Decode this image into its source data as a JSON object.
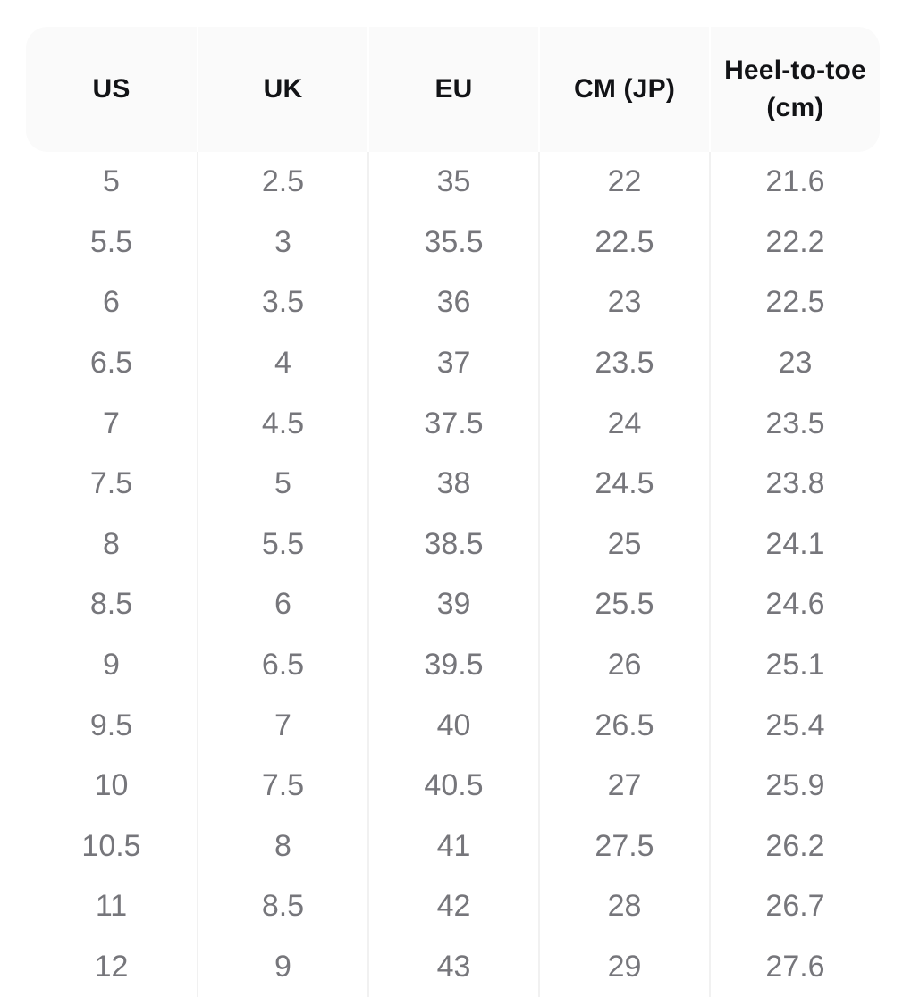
{
  "table": {
    "name": "shoe-size-conversion-chart",
    "columns": [
      {
        "key": "us",
        "label": "US"
      },
      {
        "key": "uk",
        "label": "UK"
      },
      {
        "key": "eu",
        "label": "EU"
      },
      {
        "key": "cm_jp",
        "label": "CM (JP)"
      },
      {
        "key": "heel_to_toe",
        "label": "Heel-to-toe (cm)"
      }
    ],
    "rows": [
      [
        "5",
        "2.5",
        "35",
        "22",
        "21.6"
      ],
      [
        "5.5",
        "3",
        "35.5",
        "22.5",
        "22.2"
      ],
      [
        "6",
        "3.5",
        "36",
        "23",
        "22.5"
      ],
      [
        "6.5",
        "4",
        "37",
        "23.5",
        "23"
      ],
      [
        "7",
        "4.5",
        "37.5",
        "24",
        "23.5"
      ],
      [
        "7.5",
        "5",
        "38",
        "24.5",
        "23.8"
      ],
      [
        "8",
        "5.5",
        "38.5",
        "25",
        "24.1"
      ],
      [
        "8.5",
        "6",
        "39",
        "25.5",
        "24.6"
      ],
      [
        "9",
        "6.5",
        "39.5",
        "26",
        "25.1"
      ],
      [
        "9.5",
        "7",
        "40",
        "26.5",
        "25.4"
      ],
      [
        "10",
        "7.5",
        "40.5",
        "27",
        "25.9"
      ],
      [
        "10.5",
        "8",
        "41",
        "27.5",
        "26.2"
      ],
      [
        "11",
        "8.5",
        "42",
        "28",
        "26.7"
      ],
      [
        "12",
        "9",
        "43",
        "29",
        "27.6"
      ]
    ],
    "colors": {
      "header_bg": "#fafafa",
      "header_text": "#121316",
      "body_text": "#76767b",
      "column_separator_body": "#f1f1f1",
      "column_separator_header": "#ffffff",
      "page_bg": "#ffffff"
    }
  }
}
